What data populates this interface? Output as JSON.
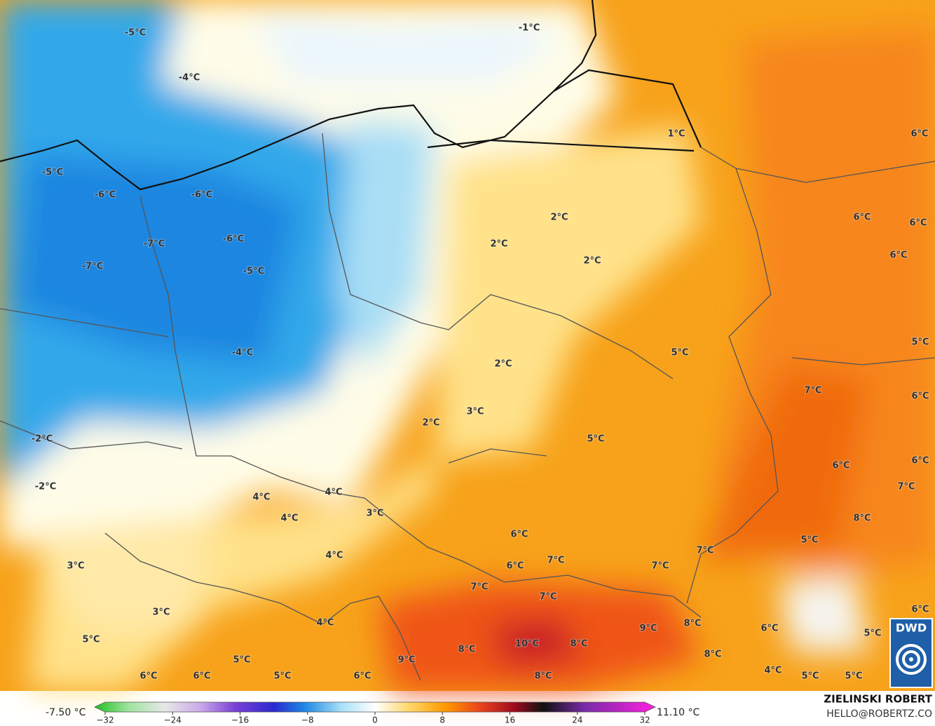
{
  "map": {
    "labels": [
      "-5°C",
      "-1°C",
      "-4°C",
      "1°C",
      "6°C",
      "-5°C",
      "-6°C",
      "-6°C",
      "2°C",
      "6°C",
      "6°C",
      "-6°C",
      "-7°C",
      "2°C",
      "2°C",
      "6°C",
      "-7°C",
      "-5°C",
      "5°C",
      "5°C",
      "-4°C",
      "2°C",
      "7°C",
      "6°C",
      "3°C",
      "2°C",
      "5°C",
      "-2°C",
      "6°C",
      "6°C",
      "-2°C",
      "7°C",
      "4°C",
      "4°C",
      "3°C",
      "4°C",
      "8°C",
      "6°C",
      "5°C",
      "4°C",
      "7°C",
      "3°C",
      "6°C",
      "7°C",
      "7°C",
      "7°C",
      "7°C",
      "6°C",
      "3°C",
      "4°C",
      "8°C",
      "9°C",
      "6°C",
      "10°C",
      "8°C",
      "8°C",
      "5°C",
      "5°C",
      "9°C",
      "5°C",
      "8°C",
      "4°C",
      "6°C",
      "6°C",
      "5°C",
      "6°C",
      "8°C",
      "5°C",
      "5°C"
    ],
    "logo": "DWD"
  },
  "legend": {
    "min_label": "-7.50 °C",
    "max_label": "11.10 °C",
    "ticks": [
      {
        "value": -32,
        "label": "−32"
      },
      {
        "value": -24,
        "label": "−24"
      },
      {
        "value": -16,
        "label": "−16"
      },
      {
        "value": -8,
        "label": "−8"
      },
      0,
      8,
      16,
      24,
      32
    ],
    "range": [
      -32,
      32
    ]
  },
  "credits": {
    "name": "ZIELINSKI ROBERT",
    "contact": "HELLO@ROBERTZ.CO"
  }
}
